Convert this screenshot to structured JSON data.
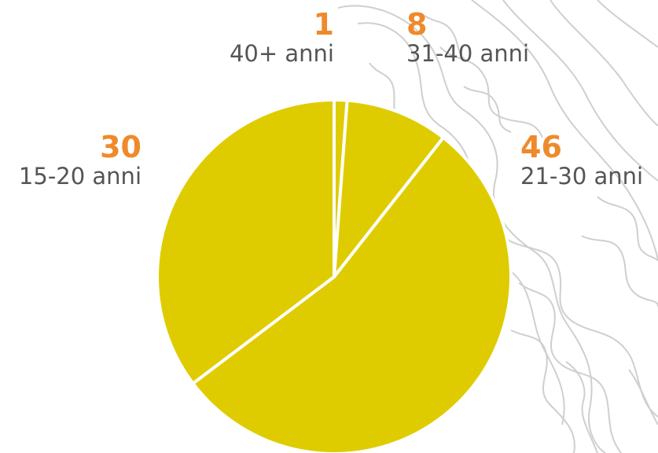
{
  "chart_data": {
    "type": "pie",
    "slices": [
      {
        "label": "40+ anni",
        "value": 1
      },
      {
        "label": "31-40 anni",
        "value": 8
      },
      {
        "label": "21-30 anni",
        "value": 46
      },
      {
        "label": "15-20 anni",
        "value": 30
      }
    ],
    "title": "",
    "legend": "none",
    "slice_color": "#dfcc00",
    "value_color": "#ef8a2c",
    "label_color": "#555555",
    "background_art": "topographic contour line illustration, light gray"
  }
}
